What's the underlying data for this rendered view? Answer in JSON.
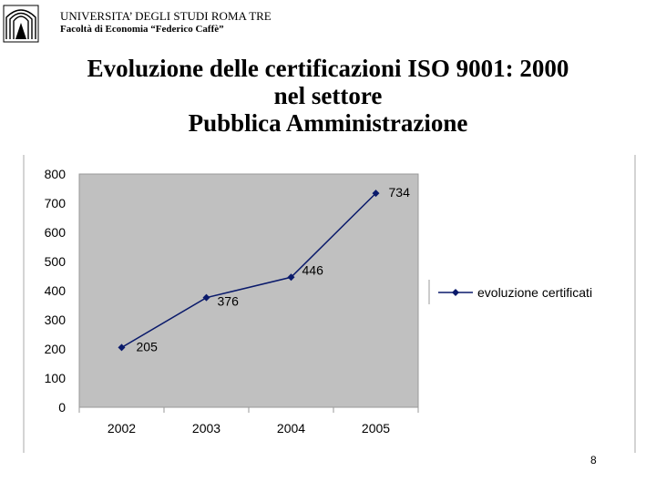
{
  "header": {
    "university": "UNIVERSITA’ DEGLI STUDI ROMA TRE",
    "faculty": "Facoltà di Economia “Federico Caffè”"
  },
  "slide": {
    "title_line1": "Evoluzione delle certificazioni ISO 9001: 2000",
    "title_line2": "nel settore",
    "title_line3": "Pubblica Amministrazione",
    "page_number": "8"
  },
  "chart_data": {
    "type": "line",
    "categories": [
      "2002",
      "2003",
      "2004",
      "2005"
    ],
    "series": [
      {
        "name": "evoluzione certificati",
        "values": [
          205,
          376,
          446,
          734
        ],
        "color": "#0a1a6b"
      }
    ],
    "yticks": [
      "0",
      "100",
      "200",
      "300",
      "400",
      "500",
      "600",
      "700",
      "800"
    ],
    "ylim": [
      0,
      800
    ],
    "data_labels": [
      "205",
      "376",
      "446",
      "734"
    ],
    "plot_background": "#c0c0c0",
    "grid": false,
    "legend": "right"
  }
}
